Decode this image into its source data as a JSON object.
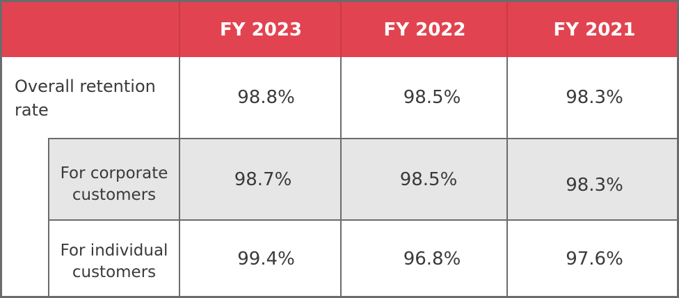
{
  "table": {
    "columns": [
      "FY 2023",
      "FY 2022",
      "FY 2021"
    ],
    "rows": [
      {
        "label": "Overall retention rate",
        "label_lines": [
          "Overall retention",
          "rate"
        ],
        "values": [
          "98.8%",
          "98.5%",
          "98.3%"
        ]
      },
      {
        "label": "For corporate customers",
        "label_lines": [
          "For corporate",
          "customers"
        ],
        "values": [
          "98.7%",
          "98.5%",
          "98.3%"
        ]
      },
      {
        "label": "For individual customers",
        "label_lines": [
          "For individual",
          "customers"
        ],
        "values": [
          "99.4%",
          "96.8%",
          "97.6%"
        ]
      }
    ]
  },
  "colors": {
    "header_background": "#e14450",
    "header_text": "#ffffff",
    "shaded_row": "#e6e6e6",
    "grid_lines": "#6b6b6b",
    "body_text": "#3a3a3a"
  }
}
